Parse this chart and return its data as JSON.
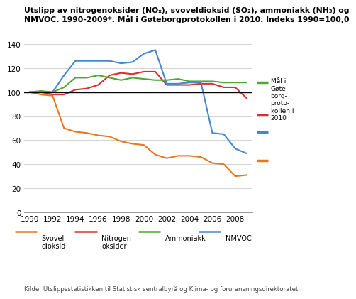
{
  "title_line1": "Utslipp av nitrogenoksider (NOₓ), svoveldioksid (SO₂), ammoniakk (NH₃) og",
  "title_line2": "NMVOC. 1990-2009*. Mål i Gøteborgprotokollen i 2010. Indeks 1990=100,0",
  "years": [
    1990,
    1991,
    1992,
    1993,
    1994,
    1995,
    1996,
    1997,
    1998,
    1999,
    2000,
    2001,
    2002,
    2003,
    2004,
    2005,
    2006,
    2007,
    2008,
    2009
  ],
  "SO2": [
    100,
    98,
    97,
    70,
    67,
    66,
    64,
    63,
    59,
    57,
    56,
    48,
    45,
    47,
    47,
    46,
    41,
    40,
    30,
    31
  ],
  "NOX": [
    100,
    100,
    98,
    98,
    102,
    103,
    106,
    114,
    116,
    115,
    117,
    117,
    106,
    106,
    106,
    107,
    107,
    104,
    104,
    95
  ],
  "NH3": [
    100,
    101,
    100,
    104,
    112,
    112,
    114,
    112,
    110,
    112,
    111,
    110,
    110,
    111,
    109,
    109,
    109,
    108,
    108,
    108
  ],
  "NMVOC": [
    100,
    100,
    100,
    114,
    126,
    126,
    126,
    126,
    124,
    125,
    132,
    135,
    107,
    107,
    108,
    108,
    66,
    65,
    53,
    49
  ],
  "SO2_color": "#e87820",
  "NOX_color": "#d83030",
  "NH3_color": "#50a832",
  "NMVOC_color": "#4488cc",
  "goal_SO2": 43,
  "goal_NOX": 81,
  "goal_NH3": 108,
  "goal_NMVOC": 67,
  "ylim": [
    0,
    140
  ],
  "yticks": [
    0,
    20,
    40,
    60,
    80,
    100,
    120,
    140
  ],
  "xticks": [
    1990,
    1992,
    1994,
    1996,
    1998,
    2000,
    2002,
    2004,
    2006,
    2008
  ],
  "source": "Kilde: Utslippsstatistikken til Statistisk sentralbyrå og Klima- og forurensningsdirektoratet..",
  "baseline_y": 100,
  "legend_labels": [
    "Svovel-\ndioksid",
    "Nitrogen-\noksider",
    "Ammoniakk",
    "NMVOC"
  ],
  "goal_label": "Mål i\nGøte-\nborg-\nproto-\nkollen i\n2010"
}
